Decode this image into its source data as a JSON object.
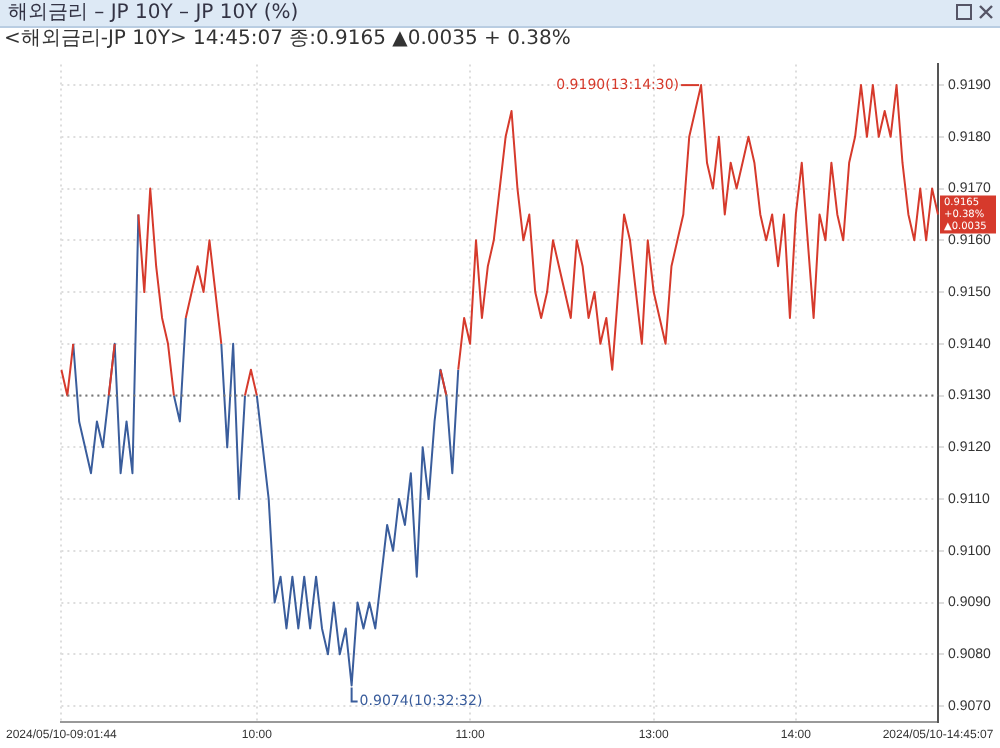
{
  "chart_data": {
    "type": "line",
    "title": "해외금리 – JP    10Y – JP 10Y (%)",
    "subtitle": "<해외금리-JP 10Y> 14:45:07 종:0.9165 ▲0.0035 + 0.38%",
    "categories": [
      "2024/05/10-09:01:44",
      null,
      null,
      null,
      null,
      null,
      null,
      null,
      null,
      null,
      null,
      null,
      null,
      null,
      null,
      null,
      null,
      null,
      null,
      null,
      null,
      null,
      null,
      null,
      null,
      null,
      null,
      null,
      null,
      null,
      null,
      null,
      null,
      "10:00",
      null,
      null,
      null,
      null,
      null,
      null,
      null,
      null,
      null,
      null,
      null,
      null,
      null,
      null,
      null,
      null,
      null,
      null,
      null,
      null,
      null,
      null,
      null,
      null,
      null,
      null,
      null,
      null,
      null,
      null,
      null,
      null,
      null,
      null,
      null,
      "11:00",
      null,
      null,
      null,
      null,
      null,
      null,
      null,
      null,
      null,
      null,
      null,
      null,
      null,
      null,
      null,
      null,
      null,
      null,
      null,
      null,
      null,
      null,
      null,
      null,
      null,
      null,
      null,
      null,
      null,
      null,
      "13:00",
      null,
      null,
      null,
      null,
      null,
      null,
      null,
      null,
      null,
      null,
      null,
      null,
      null,
      null,
      null,
      null,
      null,
      null,
      null,
      null,
      null,
      null,
      null,
      "14:00",
      null,
      null,
      null,
      null,
      null,
      null,
      null,
      null,
      null,
      null,
      null,
      null,
      null,
      null,
      null,
      null,
      null,
      null,
      null,
      null,
      null,
      null,
      null,
      "2024/05/10-14:45:07"
    ],
    "series": [
      {
        "color": "#d63a2c",
        "values": [
          0.9135,
          0.913,
          0.914,
          null,
          null,
          null,
          null,
          null,
          0.913,
          0.914,
          null,
          null,
          null,
          0.9165,
          0.915,
          0.917,
          0.9155,
          0.9145,
          0.914,
          0.913,
          null,
          0.9145,
          0.915,
          0.9155,
          0.915,
          0.916,
          0.915,
          0.914,
          null,
          null,
          null,
          0.913,
          0.9135,
          0.913,
          null,
          null,
          null,
          null,
          null,
          null,
          null,
          null,
          null,
          null,
          null,
          null,
          null,
          null,
          null,
          null,
          null,
          null,
          null,
          null,
          null,
          null,
          null,
          null,
          null,
          null,
          null,
          null,
          null,
          null,
          0.9135,
          0.913,
          null,
          0.9135,
          0.9145,
          0.914,
          0.916,
          0.9145,
          0.9155,
          0.916,
          0.917,
          0.918,
          0.9185,
          0.917,
          0.916,
          0.9165,
          0.915,
          0.9145,
          0.915,
          0.916,
          0.9155,
          0.915,
          0.9145,
          0.916,
          0.9155,
          0.9145,
          0.915,
          0.914,
          0.9145,
          0.9135,
          0.915,
          0.9165,
          0.916,
          0.915,
          0.914,
          0.916,
          0.915,
          0.9145,
          0.914,
          0.9155,
          0.916,
          0.9165,
          0.918,
          0.9185,
          0.919,
          0.9175,
          0.917,
          0.918,
          0.9165,
          0.9175,
          0.917,
          0.9175,
          0.918,
          0.9175,
          0.9165,
          0.916,
          0.9165,
          0.9155,
          0.9165,
          0.9145,
          0.9165,
          0.9175,
          0.916,
          0.9145,
          0.9165,
          0.916,
          0.9175,
          0.9165,
          0.916,
          0.9175,
          0.918,
          0.919,
          0.918,
          0.919,
          0.918,
          0.9185,
          0.918,
          0.919,
          0.9175,
          0.9165,
          0.916,
          0.917,
          0.916,
          0.917,
          0.9165
        ]
      },
      {
        "color": "#3a5d9c",
        "values": [
          null,
          null,
          0.914,
          0.9125,
          0.912,
          0.9115,
          0.9125,
          0.912,
          0.913,
          0.914,
          0.9115,
          0.9125,
          0.9115,
          0.9165,
          null,
          null,
          null,
          null,
          null,
          0.913,
          0.9125,
          0.9145,
          null,
          null,
          null,
          null,
          null,
          0.914,
          0.912,
          0.914,
          0.911,
          0.913,
          null,
          0.913,
          0.912,
          0.911,
          0.909,
          0.9095,
          0.9085,
          0.9095,
          0.9085,
          0.9095,
          0.9085,
          0.9095,
          0.9085,
          0.908,
          0.909,
          0.908,
          0.9085,
          0.9074,
          0.909,
          0.9085,
          0.909,
          0.9085,
          0.9095,
          0.9105,
          0.91,
          0.911,
          0.9105,
          0.9115,
          0.9095,
          0.912,
          0.911,
          0.9125,
          0.9135,
          0.913,
          0.9115,
          0.9135,
          null,
          null,
          null,
          null,
          null,
          null,
          null,
          null,
          null,
          null,
          null,
          null,
          null,
          null,
          null,
          null,
          null,
          null,
          null,
          null,
          null,
          null,
          null,
          null,
          null,
          null,
          null,
          null,
          null,
          null,
          null,
          null,
          null,
          null,
          null,
          null,
          null,
          null,
          null,
          null,
          null,
          null,
          null,
          null,
          null,
          null,
          null,
          null,
          null,
          null,
          null,
          null,
          null,
          null,
          null,
          null,
          null,
          null,
          null,
          null,
          null,
          null,
          null,
          null,
          null,
          null,
          null,
          null,
          null,
          null,
          null,
          null,
          null,
          null,
          null,
          null,
          null,
          null,
          null,
          null,
          null
        ]
      }
    ],
    "ylim": [
      0.9067,
      0.9194
    ],
    "yticks": [
      {
        "value": 0.907,
        "label": "0.9070"
      },
      {
        "value": 0.908,
        "label": "0.9080"
      },
      {
        "value": 0.909,
        "label": "0.9090"
      },
      {
        "value": 0.91,
        "label": "0.9100"
      },
      {
        "value": 0.911,
        "label": "0.9110"
      },
      {
        "value": 0.912,
        "label": "0.9120"
      },
      {
        "value": 0.913,
        "label": "0.9130"
      },
      {
        "value": 0.914,
        "label": "0.9140"
      },
      {
        "value": 0.915,
        "label": "0.9150"
      },
      {
        "value": 0.916,
        "label": "0.9160"
      },
      {
        "value": 0.917,
        "label": "0.9170"
      },
      {
        "value": 0.918,
        "label": "0.9180"
      },
      {
        "value": 0.919,
        "label": "0.9190"
      }
    ],
    "ref_lines": [
      {
        "axis": "y",
        "value": 0.913,
        "color": "#777777",
        "line_style": "dotted"
      }
    ],
    "annotations": [
      "0.9190(13:14:30)",
      "0.9074(10:32:32)",
      "0.9165 +0.38% ▲0.0035"
    ],
    "grid": true,
    "legend": false,
    "marker": "none",
    "line_style": "solid"
  }
}
